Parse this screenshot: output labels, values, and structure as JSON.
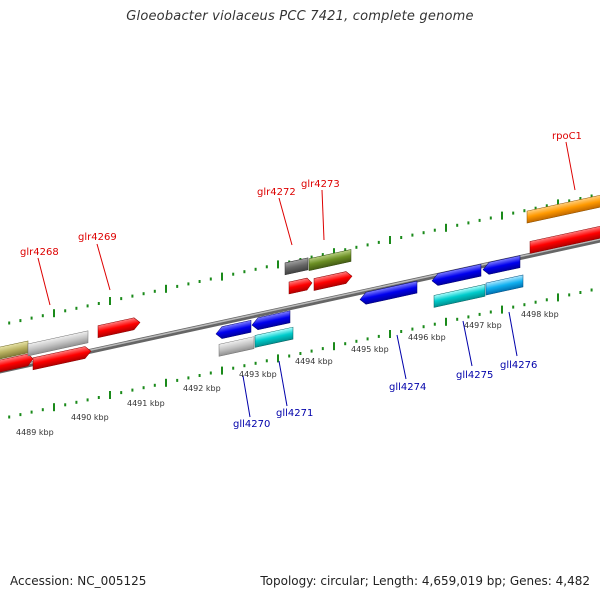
{
  "title": "Gloeobacter violaceus PCC 7421, complete genome",
  "footer": {
    "accession": "Accession: NC_005125",
    "topology": "Topology: circular; Length: 4,659,019 bp; Genes: 4,482"
  },
  "colors": {
    "forward_label": "#dd0000",
    "reverse_label": "#0000aa",
    "tick": "#1a8a1a",
    "backbone": "#888888"
  },
  "scale": {
    "unit": "kbp",
    "labels": [
      "4489 kbp",
      "4490 kbp",
      "4491 kbp",
      "4492 kbp",
      "4493 kbp",
      "4494 kbp",
      "4495 kbp",
      "4496 kbp",
      "4497 kbp",
      "4498 kbp"
    ]
  },
  "forward_genes": [
    {
      "name": "glr4268",
      "color": "red"
    },
    {
      "name": "glr4269",
      "color": "red"
    },
    {
      "name": "glr4272",
      "color": "gray"
    },
    {
      "name": "glr4273",
      "color": "olive"
    },
    {
      "name": "rpoC1",
      "color": "orange"
    }
  ],
  "reverse_genes": [
    {
      "name": "gll4270",
      "color": "blue"
    },
    {
      "name": "gll4271",
      "color": "cyan"
    },
    {
      "name": "gll4274",
      "color": "blue"
    },
    {
      "name": "gll4275",
      "color": "cyan"
    },
    {
      "name": "gll4276",
      "color": "cyan"
    }
  ]
}
